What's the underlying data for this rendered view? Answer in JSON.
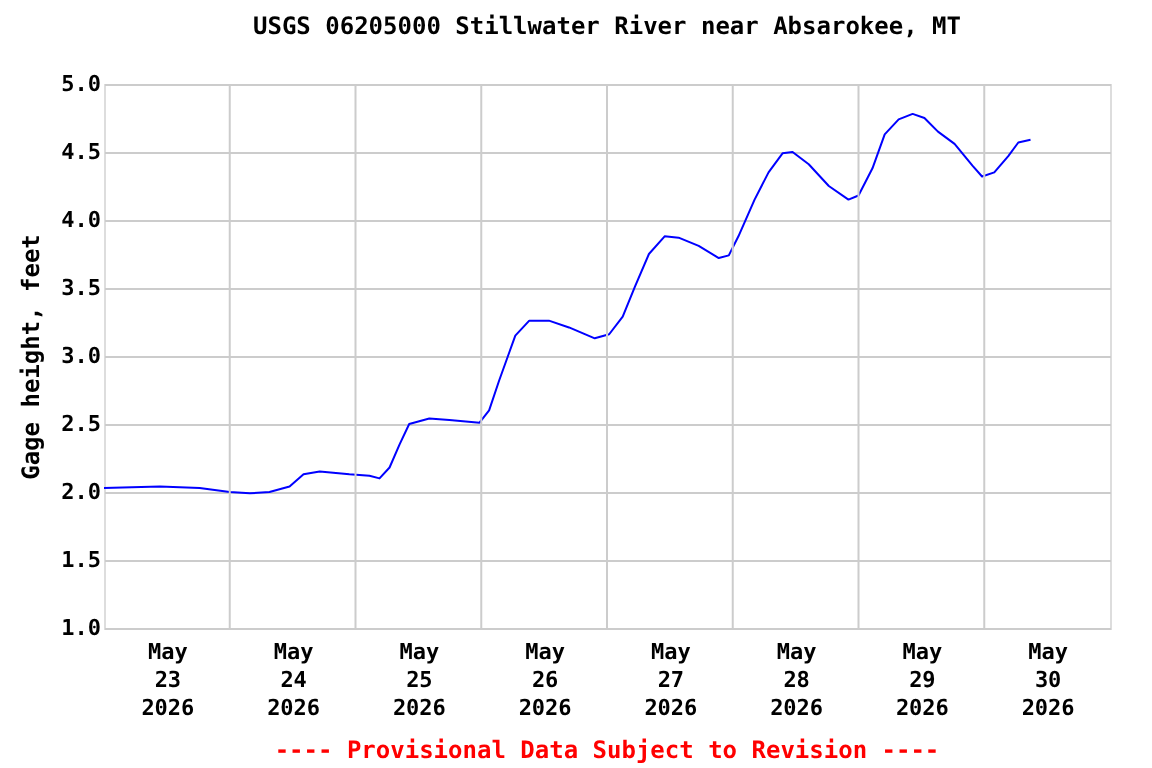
{
  "chart_data": {
    "type": "line",
    "title": "USGS 06205000 Stillwater River near Absarokee, MT",
    "ylabel": "Gage height, feet",
    "annotations": [
      "---- Provisional Data Subject to Revision ----"
    ],
    "x": [
      "2026-05-23T00:00",
      "2026-05-23T10:40",
      "2026-05-23T18:15",
      "2026-05-24T00:00",
      "2026-05-24T03:50",
      "2026-05-24T07:35",
      "2026-05-24T11:25",
      "2026-05-24T14:05",
      "2026-05-24T17:10",
      "2026-05-24T22:50",
      "2026-05-25T02:40",
      "2026-05-25T04:35",
      "2026-05-25T06:30",
      "2026-05-25T08:25",
      "2026-05-25T10:15",
      "2026-05-25T14:05",
      "2026-05-25T17:55",
      "2026-05-25T23:40",
      "2026-05-26T01:30",
      "2026-05-26T03:25",
      "2026-05-26T06:30",
      "2026-05-26T09:10",
      "2026-05-26T12:55",
      "2026-05-26T16:45",
      "2026-05-26T21:40",
      "2026-05-27T00:25",
      "2026-05-27T03:00",
      "2026-05-27T05:20",
      "2026-05-27T08:00",
      "2026-05-27T11:00",
      "2026-05-27T13:40",
      "2026-05-27T17:30",
      "2026-05-27T21:20",
      "2026-05-27T23:15",
      "2026-05-28T01:05",
      "2026-05-28T04:10",
      "2026-05-28T06:50",
      "2026-05-28T09:30",
      "2026-05-28T11:25",
      "2026-05-28T14:30",
      "2026-05-28T18:20",
      "2026-05-28T22:05",
      "2026-05-29T00:00",
      "2026-05-29T02:40",
      "2026-05-29T05:00",
      "2026-05-29T07:40",
      "2026-05-29T10:20",
      "2026-05-29T12:35",
      "2026-05-29T15:10",
      "2026-05-29T18:20",
      "2026-05-29T21:45",
      "2026-05-29T23:35",
      "2026-05-30T01:55",
      "2026-05-30T04:35",
      "2026-05-30T06:30",
      "2026-05-30T08:50"
    ],
    "series": [
      {
        "color": "#0000ff",
        "values": [
          2.03,
          2.04,
          2.03,
          2.0,
          1.99,
          2.0,
          2.04,
          2.13,
          2.15,
          2.13,
          2.12,
          2.1,
          2.18,
          2.35,
          2.5,
          2.54,
          2.53,
          2.51,
          2.6,
          2.82,
          3.15,
          3.26,
          3.26,
          3.21,
          3.13,
          3.16,
          3.29,
          3.51,
          3.75,
          3.88,
          3.87,
          3.81,
          3.72,
          3.74,
          3.88,
          4.15,
          4.35,
          4.49,
          4.5,
          4.41,
          4.25,
          4.15,
          4.18,
          4.38,
          4.63,
          4.74,
          4.78,
          4.75,
          4.65,
          4.56,
          4.4,
          4.32,
          4.35,
          4.47,
          4.57,
          4.59
        ]
      }
    ],
    "xlim": [
      "2026-05-23T00:00",
      "2026-05-31T00:00"
    ],
    "xticks": [
      {
        "value": "2026-05-23T12:00",
        "label": "May\n23\n2026"
      },
      {
        "value": "2026-05-24T00:00",
        "label": null
      },
      {
        "value": "2026-05-24T12:00",
        "label": "May\n24\n2026"
      },
      {
        "value": "2026-05-25T00:00",
        "label": null
      },
      {
        "value": "2026-05-25T12:00",
        "label": "May\n25\n2026"
      },
      {
        "value": "2026-05-26T00:00",
        "label": null
      },
      {
        "value": "2026-05-26T12:00",
        "label": "May\n26\n2026"
      },
      {
        "value": "2026-05-27T00:00",
        "label": null
      },
      {
        "value": "2026-05-27T12:00",
        "label": "May\n27\n2026"
      },
      {
        "value": "2026-05-28T00:00",
        "label": null
      },
      {
        "value": "2026-05-28T12:00",
        "label": "May\n28\n2026"
      },
      {
        "value": "2026-05-29T00:00",
        "label": null
      },
      {
        "value": "2026-05-29T12:00",
        "label": "May\n29\n2026"
      },
      {
        "value": "2026-05-30T00:00",
        "label": null
      },
      {
        "value": "2026-05-30T12:00",
        "label": "May\n30\n2026"
      }
    ],
    "ylim": [
      1,
      5
    ],
    "yticks": [
      {
        "value": 1,
        "label": "1.0"
      },
      {
        "value": 1.5,
        "label": "1.5"
      },
      {
        "value": 2,
        "label": "2.0"
      },
      {
        "value": 2.5,
        "label": "2.5"
      },
      {
        "value": 3,
        "label": "3.0"
      },
      {
        "value": 3.5,
        "label": "3.5"
      },
      {
        "value": 4,
        "label": "4.0"
      },
      {
        "value": 4.5,
        "label": "4.5"
      },
      {
        "value": 5,
        "label": "5.0"
      }
    ],
    "grid": true,
    "legend": false,
    "marker": "none",
    "line_style": "solid"
  }
}
